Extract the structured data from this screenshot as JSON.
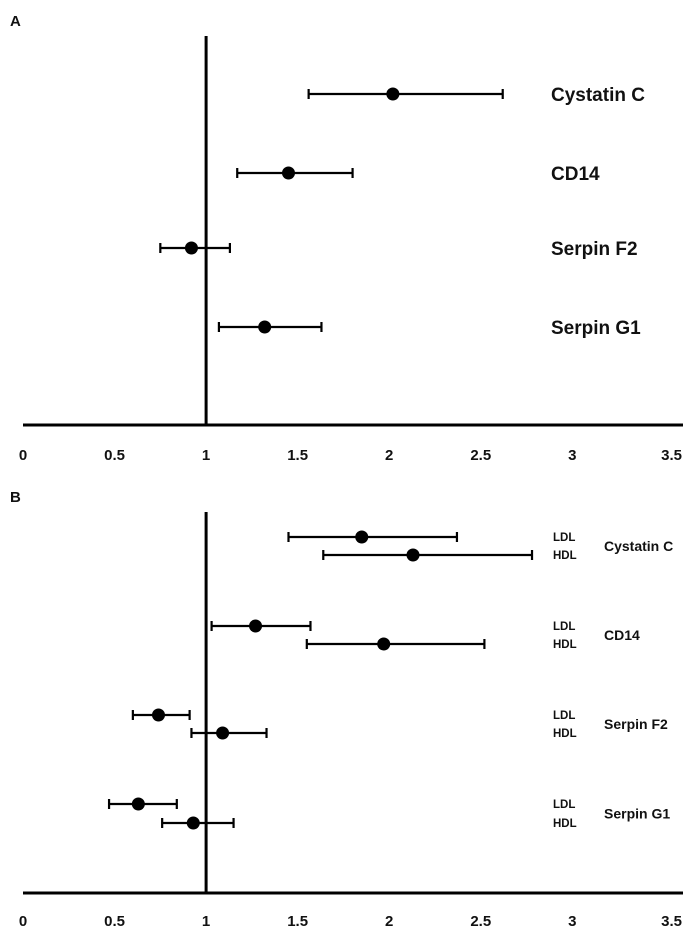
{
  "chart_data": [
    {
      "type": "forest",
      "panel": "A",
      "xlim": [
        0,
        3.5
      ],
      "xticks": [
        "0",
        "0.5",
        "1",
        "1.5",
        "2",
        "2.5",
        "3",
        "3.5"
      ],
      "reference_line": 1,
      "rows": [
        {
          "label": "Cystatin C",
          "estimate": 2.02,
          "lower": 1.56,
          "upper": 2.62
        },
        {
          "label": "CD14",
          "estimate": 1.45,
          "lower": 1.17,
          "upper": 1.8
        },
        {
          "label": "Serpin F2",
          "estimate": 0.92,
          "lower": 0.75,
          "upper": 1.13
        },
        {
          "label": "Serpin G1",
          "estimate": 1.32,
          "lower": 1.07,
          "upper": 1.63
        }
      ]
    },
    {
      "type": "forest",
      "panel": "B",
      "xlim": [
        0,
        3.5
      ],
      "xticks": [
        "0",
        "0.5",
        "1",
        "1.5",
        "2",
        "2.5",
        "3",
        "3.5"
      ],
      "reference_line": 1,
      "groups": [
        {
          "label": "Cystatin C",
          "rows": [
            {
              "label": "LDL",
              "estimate": 1.85,
              "lower": 1.45,
              "upper": 2.37
            },
            {
              "label": "HDL",
              "estimate": 2.13,
              "lower": 1.64,
              "upper": 2.78
            }
          ]
        },
        {
          "label": "CD14",
          "rows": [
            {
              "label": "LDL",
              "estimate": 1.27,
              "lower": 1.03,
              "upper": 1.57
            },
            {
              "label": "HDL",
              "estimate": 1.97,
              "lower": 1.55,
              "upper": 2.52
            }
          ]
        },
        {
          "label": "Serpin F2",
          "rows": [
            {
              "label": "LDL",
              "estimate": 0.74,
              "lower": 0.6,
              "upper": 0.91
            },
            {
              "label": "HDL",
              "estimate": 1.09,
              "lower": 0.92,
              "upper": 1.33
            }
          ]
        },
        {
          "label": "Serpin G1",
          "rows": [
            {
              "label": "LDL",
              "estimate": 0.63,
              "lower": 0.47,
              "upper": 0.84
            },
            {
              "label": "HDL",
              "estimate": 0.93,
              "lower": 0.76,
              "upper": 1.15
            }
          ]
        }
      ]
    }
  ]
}
